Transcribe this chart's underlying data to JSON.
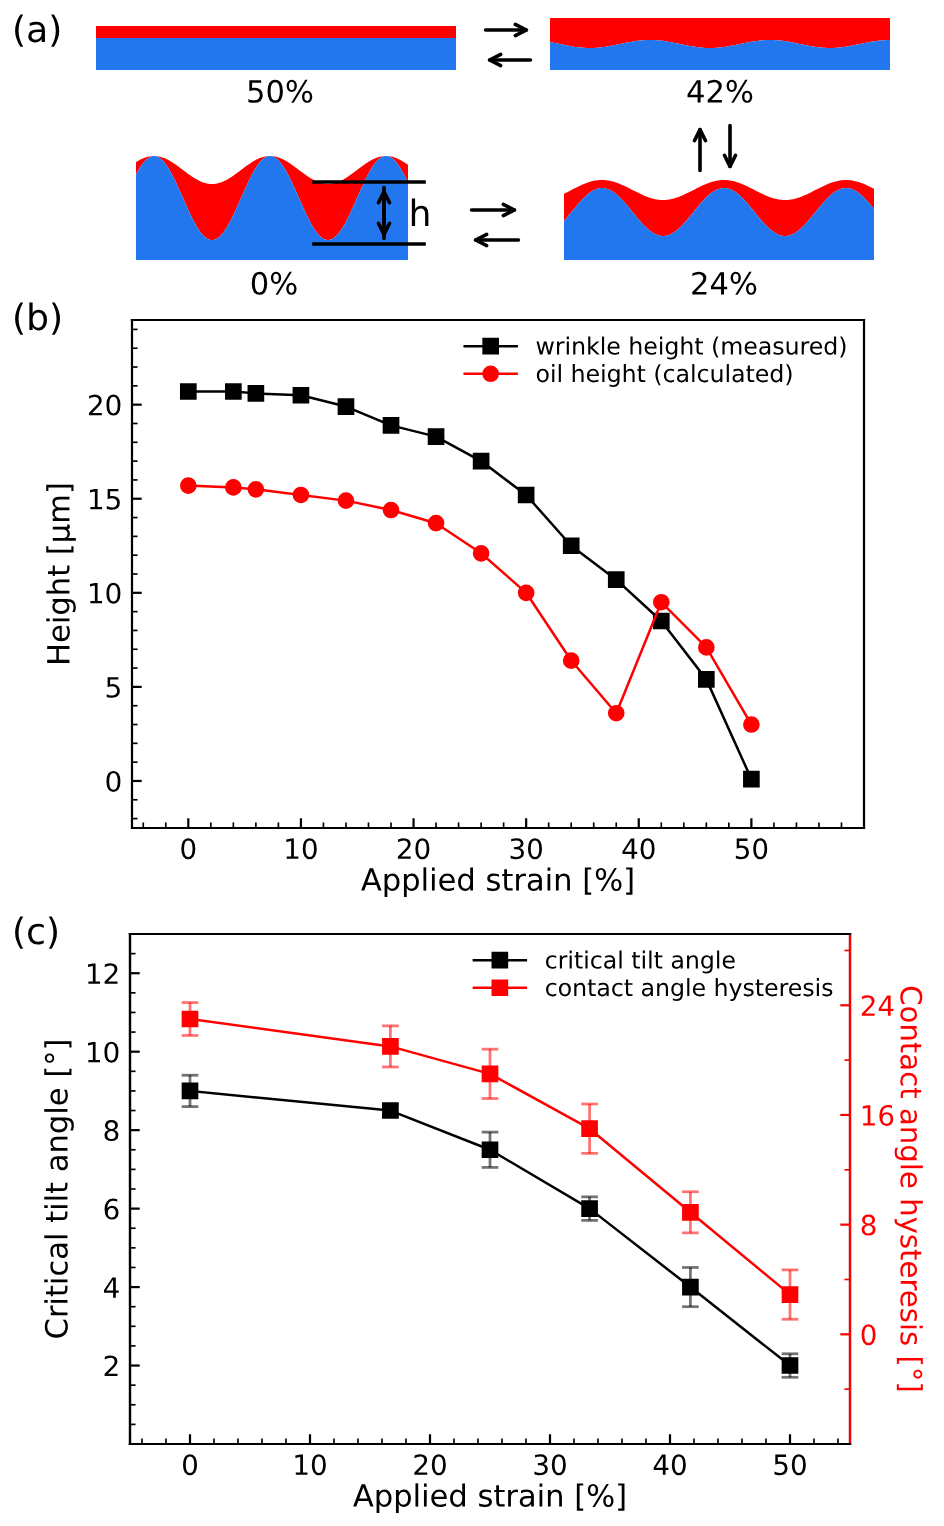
{
  "chart_data": [
    {
      "type": "other",
      "title": "(a)",
      "annotations": [
        "50%",
        "42%",
        "0%",
        "24%",
        "h"
      ]
    },
    {
      "type": "line",
      "title": "(b)",
      "xlabel": "Applied strain [%]",
      "ylabel": "Height [µm]",
      "legend": "top right",
      "xlim": [
        -5,
        60
      ],
      "ylim": [
        -2.5,
        24.5
      ],
      "xticks": [
        0,
        10,
        20,
        30,
        40,
        50
      ],
      "yticks": [
        0,
        5,
        10,
        15,
        20
      ],
      "x": [
        0,
        4,
        6,
        10,
        14,
        18,
        22,
        26,
        30,
        34,
        38,
        42,
        46,
        50
      ],
      "series": [
        {
          "name": "wrinkle height (measured)",
          "color": "#000000",
          "marker": "square",
          "values": [
            20.7,
            20.7,
            20.6,
            20.5,
            19.9,
            18.9,
            18.3,
            17.0,
            15.2,
            12.5,
            10.7,
            8.5,
            5.4,
            0.1
          ]
        },
        {
          "name": "oil height (calculated)",
          "color": "#ff0000",
          "marker": "circle",
          "values": [
            15.7,
            15.6,
            15.5,
            15.2,
            14.9,
            14.4,
            13.7,
            12.1,
            10.0,
            6.4,
            3.6,
            9.5,
            7.1,
            3.0
          ]
        }
      ]
    },
    {
      "type": "line",
      "title": "(c)",
      "xlabel": "Applied strain [%]",
      "ylabel": "Critical tilt angle [°]",
      "y2label": "Contact angle hysteresis [°]",
      "legend": "top right",
      "xlim": [
        -5,
        55
      ],
      "ylim": [
        0,
        13
      ],
      "y2lim": [
        -8,
        29.2
      ],
      "xticks": [
        0,
        10,
        20,
        30,
        40,
        50
      ],
      "yticks": [
        2,
        4,
        6,
        8,
        10,
        12
      ],
      "y2ticks": [
        0,
        8,
        16,
        24
      ],
      "x": [
        0,
        16.7,
        25,
        33.3,
        41.7,
        50
      ],
      "series": [
        {
          "name": "critical tilt angle",
          "color": "#000000",
          "marker": "square",
          "values": [
            9.0,
            8.5,
            7.5,
            6.0,
            4.0,
            2.0
          ],
          "errors": [
            0.4,
            0.15,
            0.45,
            0.3,
            0.5,
            0.3
          ]
        },
        {
          "name": "contact angle hysteresis",
          "color": "#ff0000",
          "marker": "square",
          "axis": "y2",
          "values": [
            23.0,
            21.0,
            19.0,
            15.0,
            8.9,
            2.9
          ],
          "errors": [
            1.2,
            1.5,
            1.8,
            1.8,
            1.5,
            1.8
          ]
        }
      ]
    }
  ]
}
